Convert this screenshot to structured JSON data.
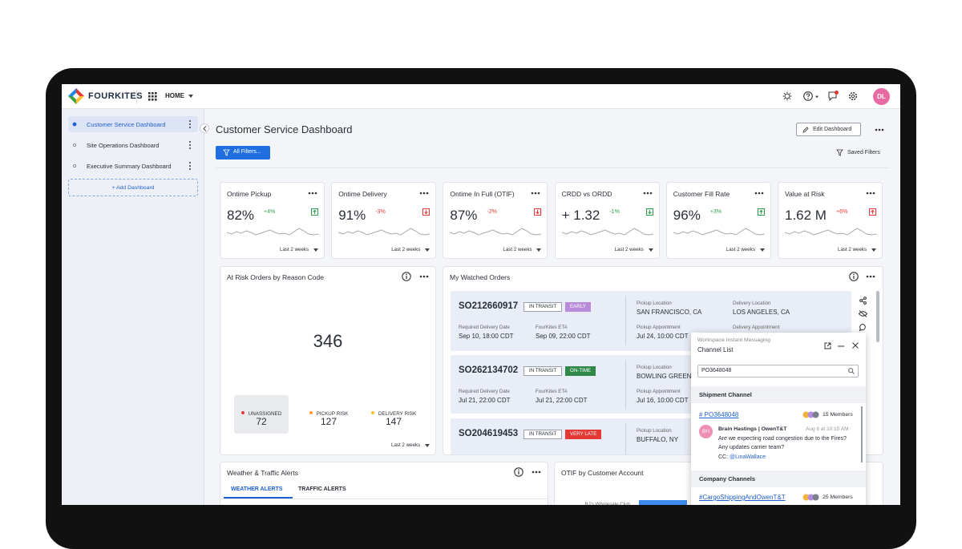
{
  "header": {
    "logo": "FOURKITES",
    "nav": "HOME",
    "avatar": "DL"
  },
  "sidebar": {
    "items": [
      "Customer Service Dashboard",
      "Site Operations Dashboard",
      "Executive Summary Dashboard"
    ],
    "add": "+ Add Dashboard"
  },
  "page": {
    "title": "Customer Service Dashboard",
    "edit": "Edit Dashboard",
    "filters": "All Filters...",
    "saved": "Saved Filters"
  },
  "kpis": [
    {
      "title": "Ontime Pickup",
      "value": "82%",
      "delta": "+4%",
      "color": "#2e9e4f"
    },
    {
      "title": "Ontime Delivery",
      "value": "91%",
      "delta": "-3%",
      "color": "#e53935"
    },
    {
      "title": "Ontime In Full (OTIF)",
      "value": "87%",
      "delta": "-2%",
      "color": "#e53935"
    },
    {
      "title": "CRDD vs ORDD",
      "value": "+ 1.32",
      "delta": "-1%",
      "color": "#2e9e4f"
    },
    {
      "title": "Customer Fill Rate",
      "value": "96%",
      "delta": "+3%",
      "color": "#2e9e4f"
    },
    {
      "title": "Value at Risk",
      "value": "1.62 M",
      "delta": "+6%",
      "color": "#e53935"
    }
  ],
  "kpi_period": "Last 2 weeks",
  "risk": {
    "title": "At Risk Orders by Reason Code",
    "total": 346,
    "segments": [
      {
        "name": "UNASSIGNED",
        "value": 72,
        "color": "#e53935"
      },
      {
        "name": "PICKUP RISK",
        "value": 127,
        "color": "#ff9a2a"
      },
      {
        "name": "DELIVERY RISK",
        "value": 147,
        "color": "#f9c22a"
      }
    ],
    "period": "Last 2 weeks"
  },
  "orders": {
    "title": "My Watched Orders",
    "rows": [
      {
        "id": "SO212660917",
        "status": "IN TRANSIT",
        "badge": "EARLY",
        "badge_color": "#b98ad9",
        "req_label": "Required Delivery Date",
        "req": "Sep 10, 18:00 CDT",
        "eta_label": "FourKites ETA",
        "eta": "Sep 09, 22:00 CDT",
        "pickup_label": "Pickup Location",
        "pickup": "SAN FRANCISCO, CA",
        "appt_label": "Pickup Appointment",
        "appt": "Jul 24, 10:00 CDT",
        "delivery_label": "Delivery Location",
        "delivery": "LOS ANGELES, CA",
        "dappt_label": "Delivery Appointment"
      },
      {
        "id": "SO262134702",
        "status": "IN TRANSIT",
        "badge": "ON-TIME",
        "badge_color": "#2f8a4a",
        "req_label": "Required Delivery Date",
        "req": "Jul 21, 22:00 CDT",
        "eta_label": "FourKites ETA",
        "eta": "Jul 21, 22:00 CDT",
        "pickup_label": "Pickup Location",
        "pickup": "BOWLING GREEN",
        "appt_label": "Pickup Appointment",
        "appt": "Jul 16, 10:00 CDT"
      },
      {
        "id": "SO204619453",
        "status": "IN TRANSIT",
        "badge": "VERY LATE",
        "badge_color": "#e53935",
        "pickup_label": "Pickup Location",
        "pickup": "BUFFALO, NY"
      }
    ]
  },
  "chat": {
    "app": "Workspace Instant Messaging",
    "title": "Channel List",
    "search": "PO3648048",
    "section1": "Shipment Channel",
    "channel": "# PO3648048",
    "members": "15 Members",
    "initials": "BH",
    "sender": "Brain Hastings | OwenT&T",
    "time": "Aug 6 at 10:15 AM",
    "message": [
      "Are we expecting road congestion due to the Fires?",
      "Any updates carrier team?"
    ],
    "cc": "CC:",
    "mention": "@LinaWallace",
    "section2": "Company Channels",
    "channel2": "#CargoShippingAndOwenT&T",
    "members2": "25 Members"
  },
  "alerts": {
    "title": "Weather & Traffic Alerts",
    "tabs": [
      "WEATHER ALERTS",
      "TRAFFIC ALERTS"
    ]
  },
  "otif": {
    "title": "OTIF by Customer Account",
    "label": "BJ's Wholesale Club"
  }
}
